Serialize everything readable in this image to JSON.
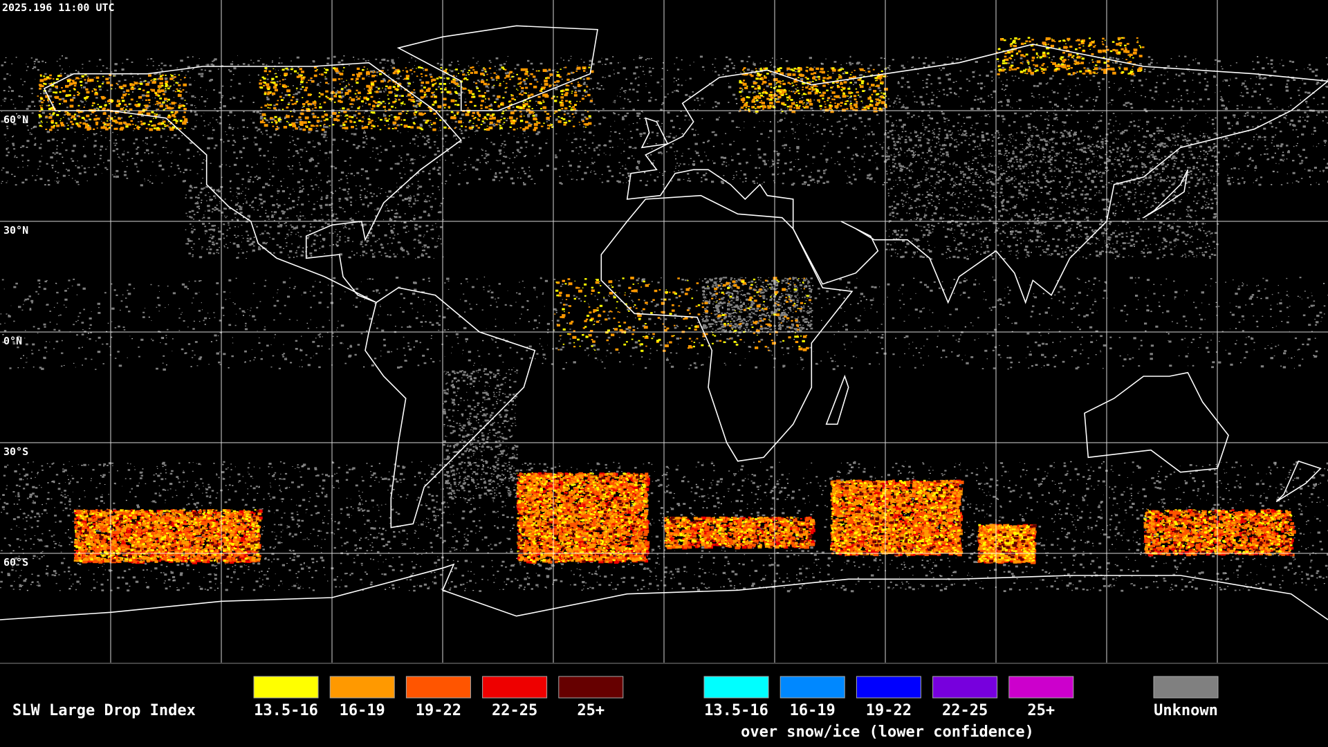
{
  "header": {
    "timestamp": "2025.196 11:00 UTC"
  },
  "map": {
    "latitude_labels": [
      "60°N",
      "30°N",
      "0°N",
      "30°S",
      "60°S"
    ]
  },
  "legend": {
    "title": "SLW Large Drop Index",
    "items": [
      {
        "label": "13.5-16",
        "color": "#ffff00"
      },
      {
        "label": "16-19",
        "color": "#ff9900"
      },
      {
        "label": "19-22",
        "color": "#ff5500"
      },
      {
        "label": "22-25",
        "color": "#ee0000"
      },
      {
        "label": "25+",
        "color": "#660000"
      }
    ],
    "snow_ice_items": [
      {
        "label": "13.5-16",
        "color": "#00ffff"
      },
      {
        "label": "16-19",
        "color": "#0088ff"
      },
      {
        "label": "19-22",
        "color": "#0000ff"
      },
      {
        "label": "22-25",
        "color": "#7700dd"
      },
      {
        "label": "25+",
        "color": "#cc00cc"
      }
    ],
    "snow_ice_caption": "over snow/ice (lower confidence)",
    "unknown": {
      "label": "Unknown",
      "color": "#808080"
    }
  }
}
